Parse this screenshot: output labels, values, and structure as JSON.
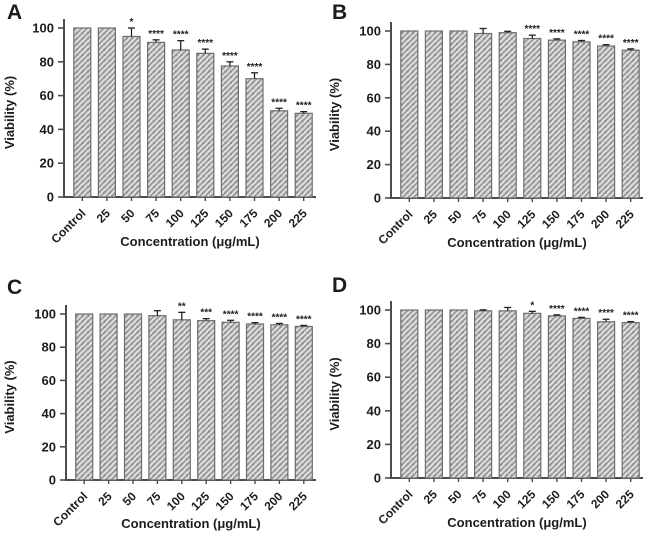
{
  "figure": {
    "panels": [
      "A",
      "B",
      "C",
      "D"
    ],
    "xlabel": "Concentration (μg/mL)",
    "ylabel": "Viability (%)"
  },
  "chart_data": [
    {
      "type": "bar",
      "panel": "A",
      "categories": [
        "Control",
        "25",
        "50",
        "75",
        "100",
        "125",
        "150",
        "175",
        "200",
        "225"
      ],
      "values": [
        100,
        100,
        95,
        91.5,
        87,
        85,
        77.5,
        70,
        51,
        49.5
      ],
      "errors": [
        0,
        0,
        5,
        1.5,
        5.5,
        2.5,
        2.5,
        3.5,
        1.5,
        1
      ],
      "significance": [
        "",
        "",
        "*",
        "****",
        "****",
        "****",
        "****",
        "****",
        "****",
        "****"
      ],
      "xlabel": "Concentration (μg/mL)",
      "ylabel": "Viability (%)",
      "yticks": [
        0,
        20,
        40,
        60,
        80,
        100
      ],
      "ylim": [
        0,
        100
      ],
      "grid": false,
      "legend": "none"
    },
    {
      "type": "bar",
      "panel": "B",
      "categories": [
        "Control",
        "25",
        "50",
        "75",
        "100",
        "125",
        "150",
        "175",
        "200",
        "225"
      ],
      "values": [
        100,
        100,
        100,
        98.5,
        99,
        95.5,
        94.5,
        93.5,
        91,
        88.5
      ],
      "errors": [
        0,
        0,
        0,
        3,
        0.8,
        2,
        0.8,
        0.8,
        0.8,
        0.8
      ],
      "significance": [
        "",
        "",
        "",
        "",
        "",
        "****",
        "****",
        "****",
        "****",
        "****"
      ],
      "xlabel": "Concentration (μg/mL)",
      "ylabel": "Viability (%)",
      "yticks": [
        0,
        20,
        40,
        60,
        80,
        100
      ],
      "ylim": [
        0,
        100
      ],
      "grid": false,
      "legend": "none"
    },
    {
      "type": "bar",
      "panel": "C",
      "categories": [
        "Control",
        "25",
        "50",
        "75",
        "100",
        "125",
        "150",
        "175",
        "200",
        "225"
      ],
      "values": [
        100,
        100,
        100,
        99,
        96.5,
        96,
        95,
        94,
        93.5,
        92.5
      ],
      "errors": [
        0,
        0,
        0,
        3,
        4.5,
        1.2,
        1.2,
        0.8,
        0.8,
        0.6
      ],
      "significance": [
        "",
        "",
        "",
        "",
        "**",
        "***",
        "****",
        "****",
        "****",
        "****"
      ],
      "xlabel": "Concentration (μg/mL)",
      "ylabel": "Viability (%)",
      "yticks": [
        0,
        20,
        40,
        60,
        80,
        100
      ],
      "ylim": [
        0,
        100
      ],
      "grid": false,
      "legend": "none"
    },
    {
      "type": "bar",
      "panel": "D",
      "categories": [
        "Control",
        "25",
        "50",
        "75",
        "100",
        "125",
        "150",
        "175",
        "200",
        "225"
      ],
      "values": [
        100,
        100,
        100,
        99.5,
        99.5,
        98,
        96.5,
        95,
        93,
        92.5
      ],
      "errors": [
        0,
        0,
        0,
        0.6,
        2,
        1.2,
        0.6,
        0.6,
        1.5,
        0.6
      ],
      "significance": [
        "",
        "",
        "",
        "",
        "",
        "*",
        "****",
        "****",
        "****",
        "****"
      ],
      "xlabel": "Concentration (μg/mL)",
      "ylabel": "Viability (%)",
      "yticks": [
        0,
        20,
        40,
        60,
        80,
        100
      ],
      "ylim": [
        0,
        100
      ],
      "grid": false,
      "legend": "none"
    }
  ],
  "style": {
    "background": "#ffffff",
    "bar_fill": "#dcdcdc",
    "bar_hatch": "#8e8e8e",
    "bar_border": "#6d6d6d",
    "axis_color": "#4c4c4c",
    "text_color": "#1c1c1c",
    "error_color": "#222222",
    "hatch_direction": "forward-diagonal"
  }
}
